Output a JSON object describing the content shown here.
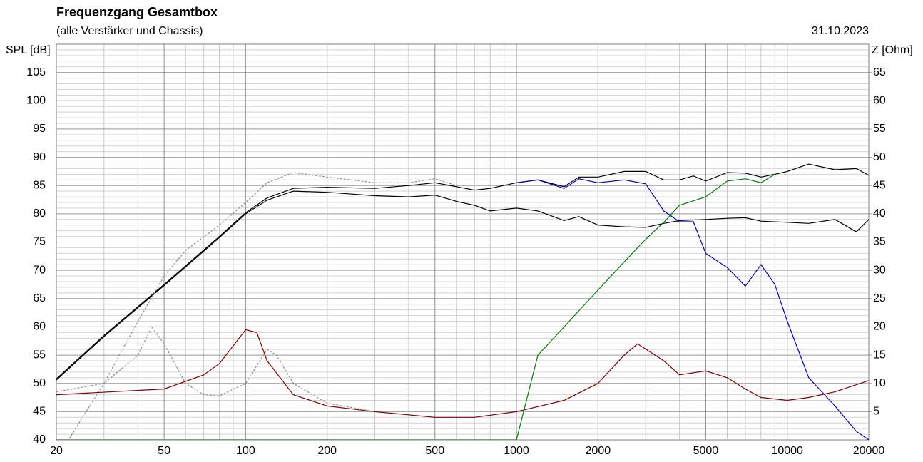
{
  "chart_data": {
    "type": "line",
    "title": "Frequenzgang Gesamtbox",
    "subtitle": "(alle Verstärker und Chassis)",
    "date": "31.10.2023",
    "ylabel": "SPL [dB]",
    "y2label": "Z [Ohm]",
    "xscale": "log",
    "xlim": [
      20,
      20000
    ],
    "xticks": [
      20,
      50,
      100,
      200,
      500,
      1000,
      2000,
      5000,
      10000,
      20000
    ],
    "x_minor_grid": [
      30,
      40,
      60,
      70,
      80,
      90,
      300,
      400,
      600,
      700,
      800,
      900,
      3000,
      4000,
      6000,
      7000,
      8000,
      9000
    ],
    "ylim": [
      40,
      110
    ],
    "yticks": [
      40,
      45,
      50,
      55,
      60,
      65,
      70,
      75,
      80,
      85,
      90,
      95,
      100,
      105
    ],
    "y_minor_step": 1,
    "y2lim": [
      0,
      70
    ],
    "y2ticks": [
      5,
      10,
      15,
      20,
      25,
      30,
      35,
      40,
      45,
      50,
      55,
      60,
      65
    ],
    "grid": true,
    "series": [
      {
        "color": "#000000",
        "dashed": false,
        "x": [
          20,
          30,
          50,
          80,
          100,
          120,
          150,
          200,
          300,
          400,
          500,
          600,
          700,
          800,
          1000,
          1200,
          1500,
          1700,
          2000,
          2500,
          3000,
          3500,
          4000,
          4500,
          5000,
          6000,
          7000,
          8000,
          9000,
          10000,
          12000,
          15000,
          18000,
          20000
        ],
        "values": [
          50.8,
          58.5,
          67.5,
          76,
          80.2,
          82.8,
          84.5,
          84.7,
          84.5,
          85,
          85.5,
          84.8,
          84.2,
          84.5,
          85.5,
          86,
          84.8,
          86.5,
          86.5,
          87.5,
          87.5,
          86,
          86,
          86.7,
          85.8,
          87.3,
          87.2,
          86.5,
          87,
          87.5,
          88.8,
          87.8,
          88,
          86.8
        ]
      },
      {
        "color": "#000000",
        "dashed": false,
        "x": [
          20,
          30,
          50,
          80,
          100,
          120,
          150,
          200,
          300,
          400,
          500,
          600,
          700,
          800,
          1000,
          1200,
          1500,
          1700,
          2000,
          2500,
          3000,
          3500,
          4000,
          5000,
          6000,
          7000,
          8000,
          10000,
          12000,
          15000,
          18000,
          20000
        ],
        "values": [
          50.6,
          58.3,
          67.3,
          75.8,
          80,
          82.4,
          84,
          83.8,
          83.2,
          83,
          83.3,
          82.2,
          81.5,
          80.5,
          81,
          80.5,
          78.8,
          79.5,
          78,
          77.7,
          77.6,
          78.3,
          78.8,
          79,
          79.2,
          79.3,
          78.7,
          78.5,
          78.3,
          79,
          76.8,
          79
        ]
      },
      {
        "color": "#0000c0",
        "dashed": false,
        "x": [
          1000,
          1200,
          1500,
          1700,
          2000,
          2500,
          3000,
          3500,
          4000,
          4500,
          5000,
          6000,
          7000,
          8000,
          9000,
          10000,
          12000,
          15000,
          18000,
          20000
        ],
        "values": [
          85.5,
          86,
          84.5,
          86.2,
          85.5,
          86,
          85.3,
          80.5,
          78.6,
          78.6,
          73,
          70.5,
          67.2,
          71,
          67.5,
          61,
          51,
          46,
          41.5,
          40
        ]
      },
      {
        "color": "#008000",
        "dashed": false,
        "x": [
          20,
          1000,
          1200,
          1500,
          2000,
          2500,
          3000,
          3500,
          4000,
          5000,
          6000,
          7000,
          8000,
          9000
        ],
        "values": [
          40,
          40,
          55,
          60,
          66.5,
          71.5,
          75.5,
          78.5,
          81.5,
          83,
          85.8,
          86.2,
          85.5,
          87
        ]
      },
      {
        "color": "#909090",
        "dashed": true,
        "x": [
          20,
          25,
          30,
          40,
          50,
          60,
          80,
          100,
          120,
          150,
          200,
          300,
          400,
          500,
          600
        ],
        "values": [
          36.5,
          44,
          50,
          61,
          69,
          73.5,
          78,
          82,
          85.5,
          87.3,
          86.5,
          85.5,
          85.5,
          86.2,
          85
        ]
      },
      {
        "color": "#800000",
        "dashed": false,
        "axis": "y2",
        "x": [
          20,
          50,
          70,
          80,
          100,
          110,
          120,
          150,
          200,
          300,
          500,
          700,
          1000,
          1500,
          2000,
          2500,
          2800,
          3500,
          4000,
          5000,
          6000,
          7000,
          8000,
          10000,
          12000,
          15000,
          20000
        ],
        "values": [
          8,
          9,
          11.5,
          13.5,
          19.5,
          19,
          14,
          8,
          6,
          5,
          4,
          4,
          5,
          7,
          10,
          15,
          17,
          14,
          11.5,
          12.2,
          11,
          9,
          7.5,
          7,
          7.5,
          8.5,
          10.5
        ]
      },
      {
        "color": "#909090",
        "dashed": true,
        "axis": "y2",
        "x": [
          20,
          30,
          40,
          45,
          50,
          60,
          70,
          80,
          100,
          120,
          130,
          150,
          200,
          300
        ],
        "values": [
          8.5,
          10,
          15,
          20,
          17,
          10,
          8,
          7.8,
          10,
          16,
          15,
          10,
          6.5,
          5
        ]
      }
    ]
  }
}
